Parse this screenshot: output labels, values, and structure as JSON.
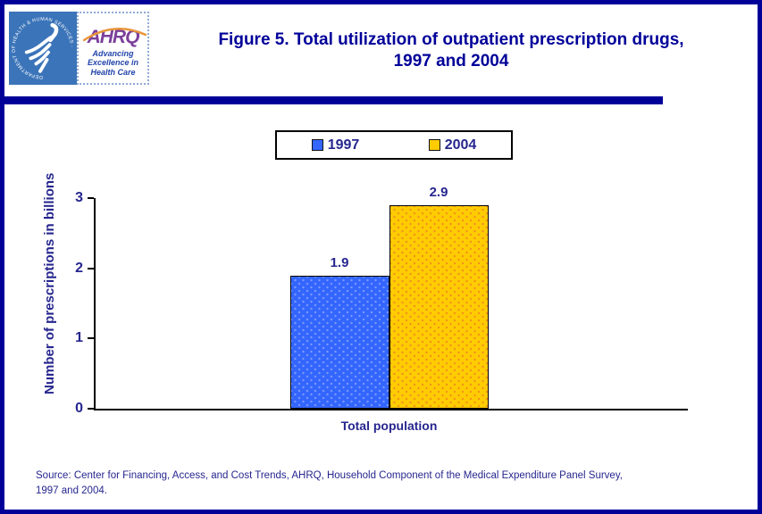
{
  "colors": {
    "page_border": "#000099",
    "title_text": "#000099",
    "chart_text": "#26268f",
    "hhs_logo_bg": "#3b74b9",
    "ahrq_purple": "#7b3f9b",
    "ahrq_tagline_blue": "#2244aa",
    "ahrq_arc_orange": "#e8963b"
  },
  "header": {
    "hhs_logo_ring_text": "DEPARTMENT OF HEALTH & HUMAN SERVICES · USA",
    "ahrq_acronym": "AHRQ",
    "ahrq_tagline": "Advancing\nExcellence in\nHealth Care",
    "title_line1": "Figure 5. Total utilization of outpatient prescription drugs,",
    "title_line2": "1997 and 2004"
  },
  "chart_data": {
    "type": "bar",
    "title": "Figure 5. Total utilization of outpatient prescription drugs, 1997 and 2004",
    "categories": [
      "Total population"
    ],
    "series": [
      {
        "name": "1997",
        "values": [
          1.9
        ],
        "color": "#3366ff",
        "dot_color": "#7e97fa"
      },
      {
        "name": "2004",
        "values": [
          2.9
        ],
        "color": "#ffcc00",
        "dot_color": "#f2921d"
      }
    ],
    "data_labels": [
      "1.9",
      "2.9"
    ],
    "xlabel": "Total population",
    "ylabel": "Number of prescriptions in billions",
    "ylim": [
      0,
      3
    ],
    "yticks": [
      0,
      1,
      2,
      3
    ],
    "grid": false,
    "legend_position": "top-center"
  },
  "footer": {
    "source_line1": "Source: Center for Financing, Access, and Cost Trends, AHRQ, Household Component of the Medical Expenditure Panel Survey,",
    "source_line2": "1997 and 2004."
  }
}
